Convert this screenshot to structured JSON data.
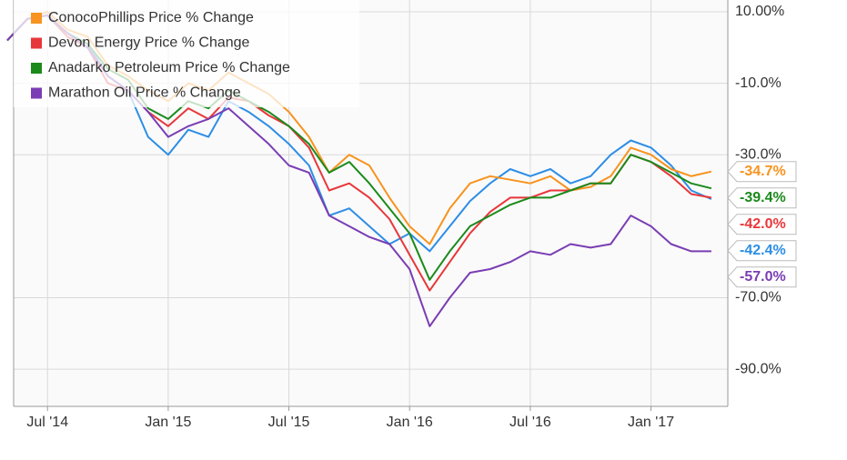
{
  "chart_data": {
    "type": "line",
    "x": [
      "2014-05",
      "2014-06",
      "2014-07",
      "2014-08",
      "2014-09",
      "2014-10",
      "2014-11",
      "2014-12",
      "2015-01",
      "2015-02",
      "2015-03",
      "2015-04",
      "2015-05",
      "2015-06",
      "2015-07",
      "2015-08",
      "2015-09",
      "2015-10",
      "2015-11",
      "2015-12",
      "2016-01",
      "2016-02",
      "2016-03",
      "2016-04",
      "2016-05",
      "2016-06",
      "2016-07",
      "2016-08",
      "2016-09",
      "2016-10",
      "2016-11",
      "2016-12",
      "2017-01",
      "2017-02",
      "2017-03",
      "2017-04"
    ],
    "xlim": [
      "2014-05",
      "2017-05"
    ],
    "xticks": [
      {
        "value": "2014-07",
        "label": "Jul '14"
      },
      {
        "value": "2015-01",
        "label": "Jan '15"
      },
      {
        "value": "2015-07",
        "label": "Jul '15"
      },
      {
        "value": "2016-01",
        "label": "Jan '16"
      },
      {
        "value": "2016-07",
        "label": "Jul '16"
      },
      {
        "value": "2017-01",
        "label": "Jan '17"
      }
    ],
    "ylim": [
      -100.4,
      13.3
    ],
    "yticks": [
      {
        "value": 10,
        "label": "10.00%"
      },
      {
        "value": -10,
        "label": "-10.0%"
      },
      {
        "value": -30,
        "label": "-30.0%"
      },
      {
        "value": -70,
        "label": "-70.0%"
      },
      {
        "value": -90,
        "label": "-90.0%"
      }
    ],
    "grid": true,
    "legend": "top-left",
    "series": [
      {
        "color": "#2d8ee6",
        "values": [
          2,
          8,
          9,
          4,
          1,
          -8,
          -12,
          -25,
          -30,
          -23,
          -25,
          -15,
          -18,
          -22,
          -27,
          -33,
          -47,
          -45,
          -50,
          -55,
          -52,
          -57,
          -50,
          -43,
          -38,
          -34,
          -36,
          -34,
          -38,
          -36,
          -30,
          -26,
          -28,
          -33,
          -40,
          -42.4
        ],
        "value_labels": [
          null,
          null,
          null,
          null,
          null,
          null,
          null,
          null,
          null,
          null,
          null,
          null,
          null,
          null,
          null,
          null,
          null,
          null,
          null,
          null,
          null,
          null,
          null,
          null,
          null,
          null,
          null,
          null,
          null,
          null,
          null,
          null,
          null,
          null,
          null,
          "-42.4%"
        ]
      },
      {
        "name": "ConocoPhillips Price % Change",
        "color": "#f7931e",
        "values": [
          2,
          8,
          10,
          5,
          3,
          -5,
          -8,
          -12,
          -15,
          -10,
          -12,
          -7,
          -10,
          -13,
          -18,
          -25,
          -35,
          -30,
          -33,
          -42,
          -50,
          -55,
          -45,
          -38,
          -36,
          -37,
          -38,
          -36,
          -40,
          -39,
          -36,
          -28,
          -30,
          -34,
          -36,
          -34.7
        ],
        "value_labels": [
          null,
          null,
          null,
          null,
          null,
          null,
          null,
          null,
          null,
          null,
          null,
          null,
          null,
          null,
          null,
          null,
          null,
          null,
          null,
          null,
          null,
          null,
          null,
          null,
          null,
          null,
          null,
          null,
          null,
          null,
          null,
          null,
          null,
          null,
          null,
          "-34.7%"
        ]
      },
      {
        "name": "Devon Energy Price % Change",
        "color": "#e8373a",
        "values": [
          2,
          8,
          9,
          3,
          0,
          -10,
          -12,
          -18,
          -22,
          -17,
          -20,
          -14,
          -15,
          -19,
          -22,
          -28,
          -40,
          -38,
          -42,
          -48,
          -58,
          -68,
          -60,
          -52,
          -46,
          -42,
          -42,
          -40,
          -40,
          -38,
          -38,
          -30,
          -32,
          -36,
          -41,
          -42.0
        ],
        "value_labels": [
          null,
          null,
          null,
          null,
          null,
          null,
          null,
          null,
          null,
          null,
          null,
          null,
          null,
          null,
          null,
          null,
          null,
          null,
          null,
          null,
          null,
          null,
          null,
          null,
          null,
          null,
          null,
          null,
          null,
          null,
          null,
          null,
          null,
          null,
          null,
          "-42.0%"
        ]
      },
      {
        "name": "Anadarko Petroleum Price % Change",
        "color": "#1b8a1b",
        "values": [
          2,
          8,
          9,
          4,
          1,
          -6,
          -9,
          -17,
          -20,
          -15,
          -17,
          -12,
          -15,
          -18,
          -22,
          -27,
          -35,
          -32,
          -38,
          -45,
          -52,
          -65,
          -57,
          -50,
          -47,
          -44,
          -42,
          -42,
          -40,
          -38,
          -38,
          -30,
          -32,
          -35,
          -38,
          -39.4
        ],
        "value_labels": [
          null,
          null,
          null,
          null,
          null,
          null,
          null,
          null,
          null,
          null,
          null,
          null,
          null,
          null,
          null,
          null,
          null,
          null,
          null,
          null,
          null,
          null,
          null,
          null,
          null,
          null,
          null,
          null,
          null,
          null,
          null,
          null,
          null,
          null,
          null,
          "-39.4%"
        ]
      },
      {
        "name": "Marathon Oil Price % Change",
        "color": "#7a3db3",
        "values": [
          2,
          8,
          9,
          4,
          0,
          -8,
          -12,
          -18,
          -25,
          -22,
          -20,
          -17,
          -22,
          -27,
          -33,
          -35,
          -47,
          -50,
          -53,
          -55,
          -62,
          -78,
          -70,
          -63,
          -62,
          -60,
          -57,
          -58,
          -55,
          -56,
          -55,
          -47,
          -50,
          -55,
          -57,
          -57.0
        ],
        "value_labels": [
          null,
          null,
          null,
          null,
          null,
          null,
          null,
          null,
          null,
          null,
          null,
          null,
          null,
          null,
          null,
          null,
          null,
          null,
          null,
          null,
          null,
          null,
          null,
          null,
          null,
          null,
          null,
          null,
          null,
          null,
          null,
          null,
          null,
          null,
          null,
          "-57.0%"
        ]
      }
    ]
  }
}
